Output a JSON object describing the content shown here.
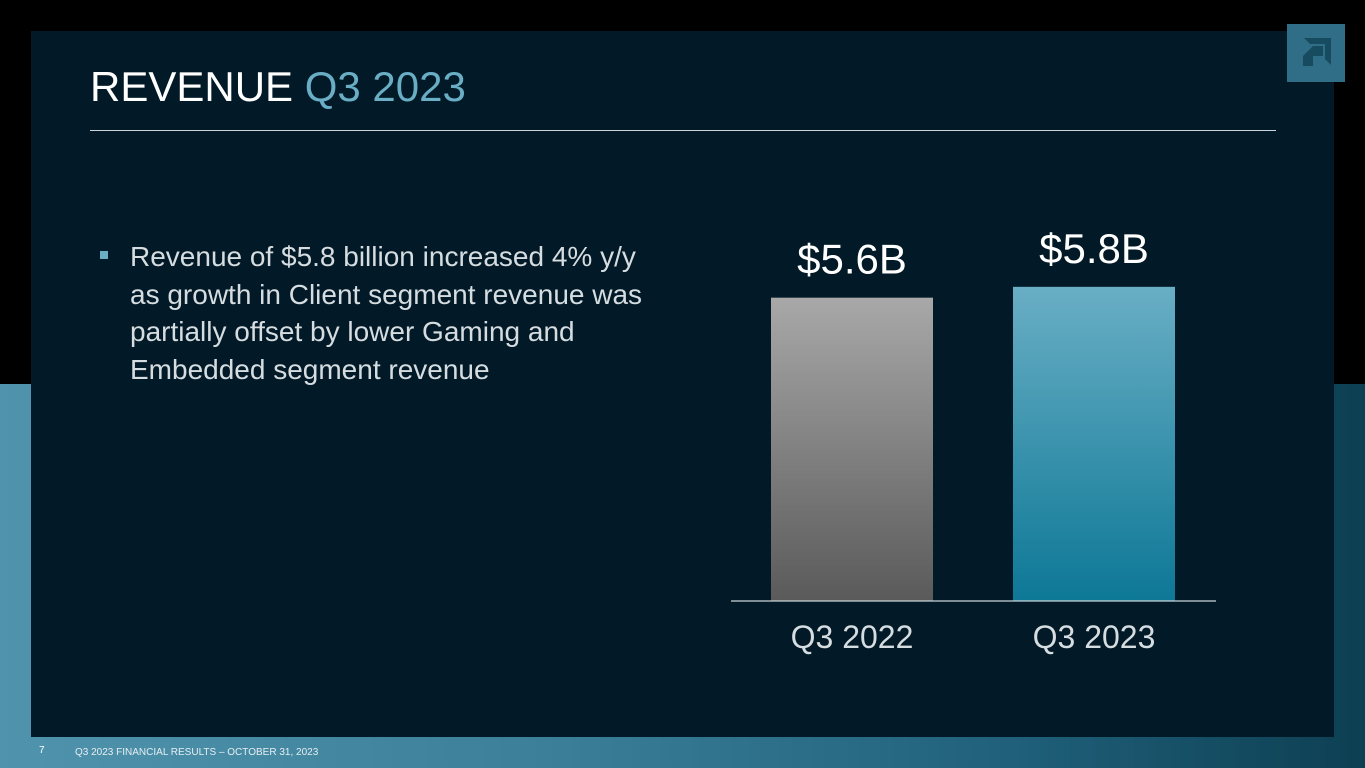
{
  "title": {
    "main": "REVENUE",
    "accent": "Q3 2023"
  },
  "bullet": {
    "text": "Revenue of $5.8 billion increased 4% y/y as growth in Client segment revenue was partially offset by lower Gaming and Embedded segment revenue"
  },
  "chart_data": {
    "type": "bar",
    "categories": [
      "Q3 2022",
      "Q3 2023"
    ],
    "values": [
      5.6,
      5.8
    ],
    "data_labels": [
      "$5.6B",
      "$5.8B"
    ],
    "title": "",
    "xlabel": "",
    "ylabel": "",
    "ylim": [
      0,
      6
    ],
    "grid": false,
    "colors": {
      "bar_prior_top": "#a8a8a8",
      "bar_prior_bottom": "#5a5a5a",
      "bar_current_top": "#69aec5",
      "bar_current_bottom": "#0d7896"
    }
  },
  "footer": {
    "page_number": "7",
    "text": "Q3 2023 FINANCIAL RESULTS – OCTOBER 31, 2023"
  },
  "logo": {
    "icon": "amd-arrow-logo-icon"
  }
}
